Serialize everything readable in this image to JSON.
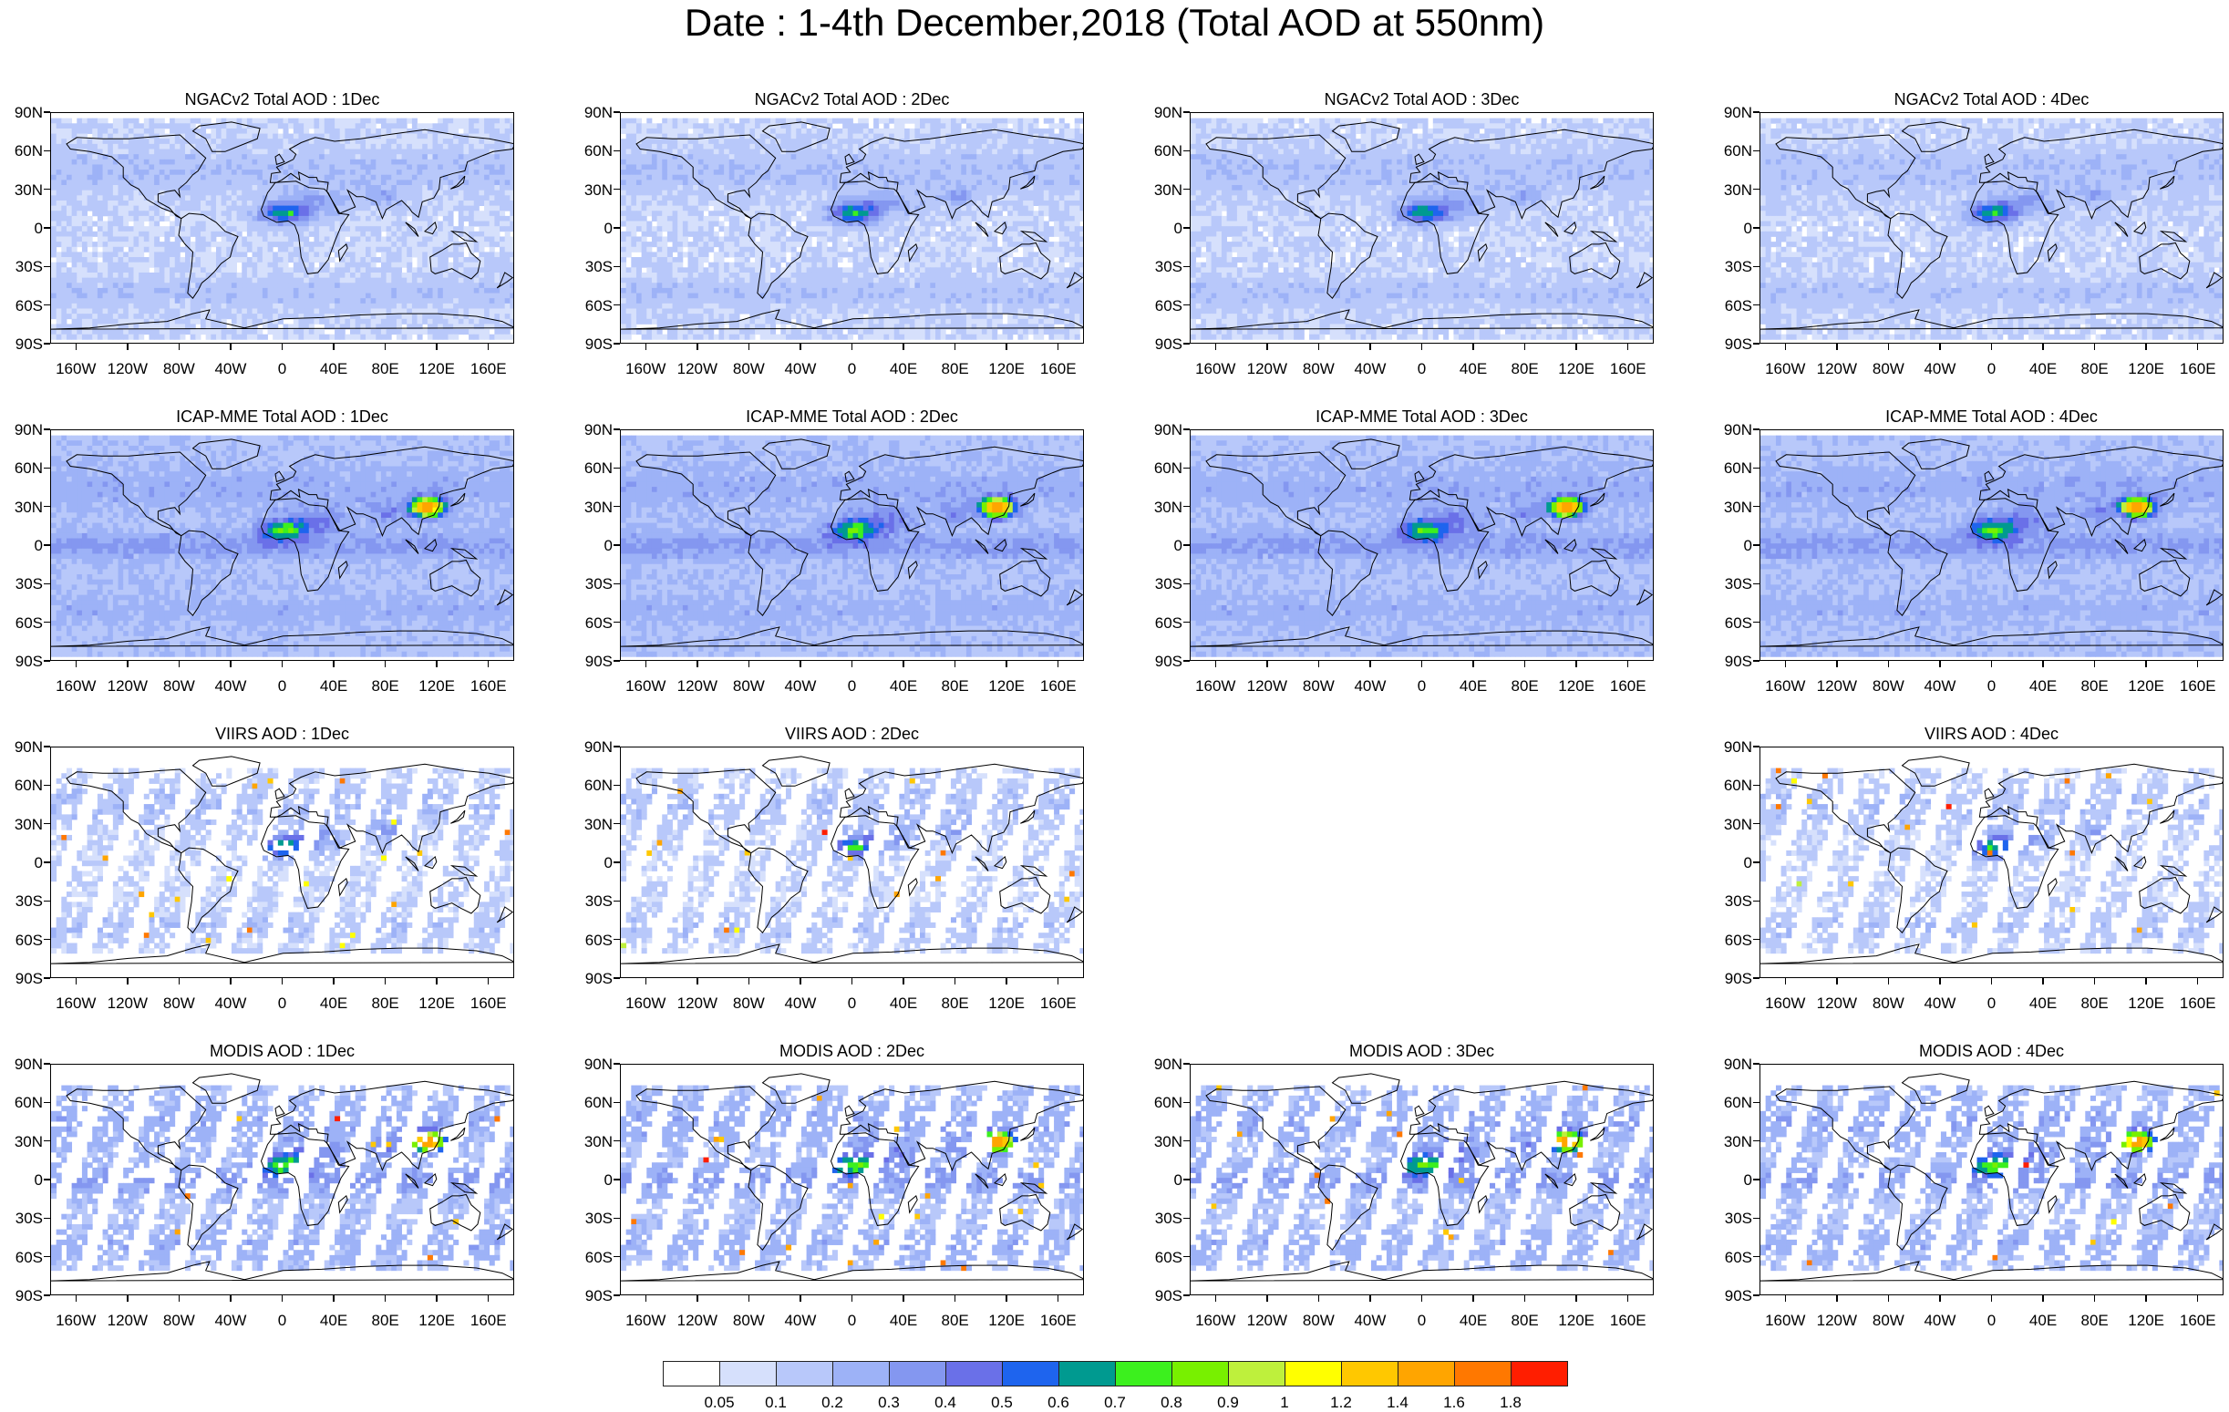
{
  "title": "Date : 1-4th December,2018 (Total AOD at 550nm)",
  "axes": {
    "lat_ticks": [
      "90N",
      "60N",
      "30N",
      "0",
      "30S",
      "60S",
      "90S"
    ],
    "lon_ticks": [
      "160W",
      "120W",
      "80W",
      "40W",
      "0",
      "40E",
      "80E",
      "120E",
      "160E"
    ]
  },
  "panels": [
    {
      "title": "NGACv2 Total AOD : 1Dec",
      "kind": "model",
      "intensity": 0,
      "row": 0,
      "col": 0
    },
    {
      "title": "NGACv2 Total AOD : 2Dec",
      "kind": "model",
      "intensity": 0,
      "row": 0,
      "col": 1
    },
    {
      "title": "NGACv2 Total AOD : 3Dec",
      "kind": "model",
      "intensity": 0,
      "row": 0,
      "col": 2
    },
    {
      "title": "NGACv2 Total AOD : 4Dec",
      "kind": "model",
      "intensity": 0,
      "row": 0,
      "col": 3
    },
    {
      "title": "ICAP-MME Total AOD : 1Dec",
      "kind": "model",
      "intensity": 1,
      "row": 1,
      "col": 0
    },
    {
      "title": "ICAP-MME Total AOD : 2Dec",
      "kind": "model",
      "intensity": 1,
      "row": 1,
      "col": 1
    },
    {
      "title": "ICAP-MME Total AOD : 3Dec",
      "kind": "model",
      "intensity": 1,
      "row": 1,
      "col": 2
    },
    {
      "title": "ICAP-MME Total AOD : 4Dec",
      "kind": "model",
      "intensity": 1,
      "row": 1,
      "col": 3
    },
    {
      "title": "VIIRS AOD : 1Dec",
      "kind": "satellite",
      "intensity": 0,
      "row": 2,
      "col": 0
    },
    {
      "title": "VIIRS AOD : 2Dec",
      "kind": "satellite",
      "intensity": 0,
      "row": 2,
      "col": 1
    },
    {
      "title": "VIIRS AOD : 4Dec",
      "kind": "satellite",
      "intensity": 0,
      "row": 2,
      "col": 3
    },
    {
      "title": "MODIS AOD : 1Dec",
      "kind": "satellite",
      "intensity": 1,
      "row": 3,
      "col": 0
    },
    {
      "title": "MODIS AOD : 2Dec",
      "kind": "satellite",
      "intensity": 1,
      "row": 3,
      "col": 1
    },
    {
      "title": "MODIS AOD : 3Dec",
      "kind": "satellite",
      "intensity": 1,
      "row": 3,
      "col": 2
    },
    {
      "title": "MODIS AOD : 4Dec",
      "kind": "satellite",
      "intensity": 1,
      "row": 3,
      "col": 3
    }
  ],
  "colorbar": {
    "labels": [
      "0.05",
      "0.1",
      "0.2",
      "0.3",
      "0.4",
      "0.5",
      "0.6",
      "0.7",
      "0.8",
      "0.9",
      "1",
      "1.2",
      "1.4",
      "1.6",
      "1.8"
    ],
    "colors": [
      "#ffffff",
      "#d6e0fc",
      "#b8c8fa",
      "#9db2f7",
      "#8497f0",
      "#6a70e8",
      "#1e64ee",
      "#009a90",
      "#3cf01e",
      "#78f000",
      "#bef03c",
      "#ffff00",
      "#ffc800",
      "#ffa500",
      "#ff7800",
      "#ff1e00"
    ]
  }
}
